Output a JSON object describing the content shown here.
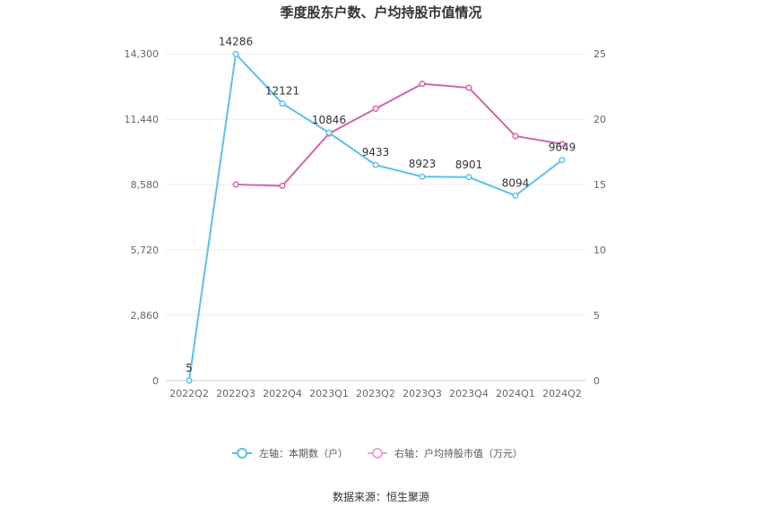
{
  "chart_data": {
    "type": "line",
    "title": "季度股东户数、户均持股市值情况",
    "categories": [
      "2022Q2",
      "2022Q3",
      "2022Q4",
      "2023Q1",
      "2023Q2",
      "2023Q3",
      "2023Q4",
      "2024Q1",
      "2024Q2"
    ],
    "left_axis": {
      "ticks": [
        "0",
        "2,860",
        "5,720",
        "8,580",
        "11,440",
        "14,300"
      ],
      "ylim": [
        0,
        14300
      ]
    },
    "right_axis": {
      "ticks": [
        "0",
        "5",
        "10",
        "15",
        "20",
        "25"
      ],
      "ylim": [
        0,
        25
      ]
    },
    "series": [
      {
        "name": "左轴：本期数（户）",
        "axis": "left",
        "color": "#5bc0eb",
        "values": [
          5,
          14286,
          12121,
          10846,
          9433,
          8923,
          8901,
          8094,
          9649
        ],
        "labels": [
          "5",
          "14286",
          "12121",
          "10846",
          "9433",
          "8923",
          "8901",
          "8094",
          "9649"
        ]
      },
      {
        "name": "右轴：户均持股市值（万元）",
        "axis": "right",
        "color": "#d066b0",
        "values": [
          null,
          15.0,
          14.9,
          18.9,
          20.8,
          22.7,
          22.4,
          18.7,
          18.1
        ]
      }
    ],
    "grid": true,
    "legend_position": "bottom"
  },
  "source_text": "数据来源：恒生聚源"
}
